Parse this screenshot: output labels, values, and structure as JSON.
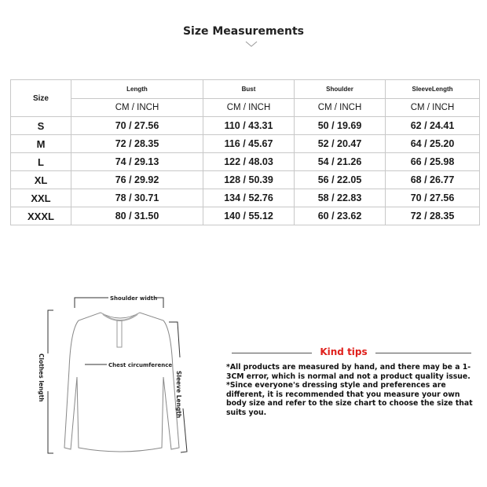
{
  "title": "Size Measurements",
  "table": {
    "size_header": "Size",
    "columns": [
      "Length",
      "Bust",
      "Shoulder",
      "SleeveLength"
    ],
    "unit": "CM / INCH",
    "rows": [
      {
        "size": "S",
        "values": [
          "70 / 27.56",
          "110 / 43.31",
          "50 / 19.69",
          "62 / 24.41"
        ]
      },
      {
        "size": "M",
        "values": [
          "72 / 28.35",
          "116 / 45.67",
          "52 / 20.47",
          "64 / 25.20"
        ]
      },
      {
        "size": "L",
        "values": [
          "74 / 29.13",
          "122 / 48.03",
          "54 / 21.26",
          "66 / 25.98"
        ]
      },
      {
        "size": "XL",
        "values": [
          "76 / 29.92",
          "128 / 50.39",
          "56 / 22.05",
          "68 / 26.77"
        ]
      },
      {
        "size": "XXL",
        "values": [
          "78 / 30.71",
          "134 / 52.76",
          "58 / 22.83",
          "70 / 27.56"
        ]
      },
      {
        "size": "XXXL",
        "values": [
          "80 / 31.50",
          "140 / 55.12",
          "60 / 23.62",
          "72 / 28.35"
        ]
      }
    ]
  },
  "diagram": {
    "shoulder": "Shoulder width",
    "chest": "Chest circumference",
    "clothes_length": "Clothes length",
    "sleeve_length": "Sleeve Length"
  },
  "tips": {
    "title": "Kind tips",
    "color": "#e0201c",
    "text": "*All products are measured by hand, and there may be a 1-3CM error, which is normal and not a product quality issue. *Since everyone's dressing style and preferences are different, it is recommended that you measure your own body size and refer to the size chart to choose the size that suits you."
  }
}
